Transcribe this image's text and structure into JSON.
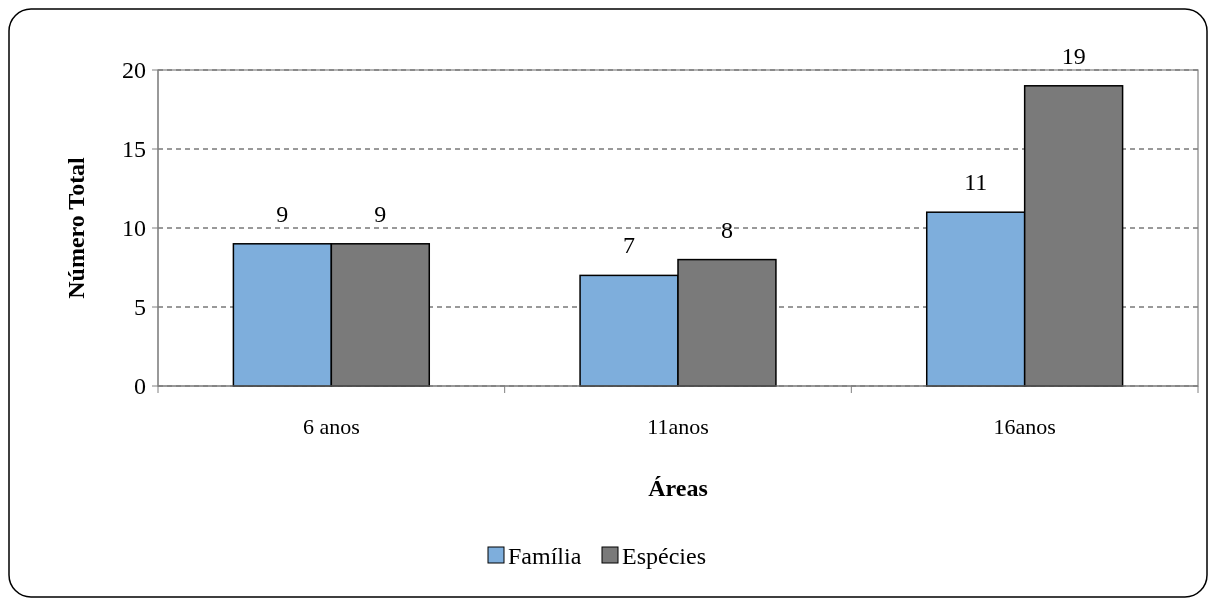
{
  "chart_data": {
    "type": "bar",
    "xlabel": "Áreas",
    "ylabel": "Número Total",
    "categories": [
      "6 anos",
      "11anos",
      "16anos"
    ],
    "series": [
      {
        "name": "Família",
        "color": "#7eaedc",
        "values": [
          9,
          7,
          11
        ]
      },
      {
        "name": "Espécies",
        "color": "#7a7a7a",
        "values": [
          9,
          8,
          19
        ]
      }
    ],
    "ylim": [
      0,
      20
    ],
    "yticks": [
      0,
      5,
      10,
      15,
      20
    ],
    "grid": "y",
    "legend": "bottom",
    "data_labels": true
  }
}
